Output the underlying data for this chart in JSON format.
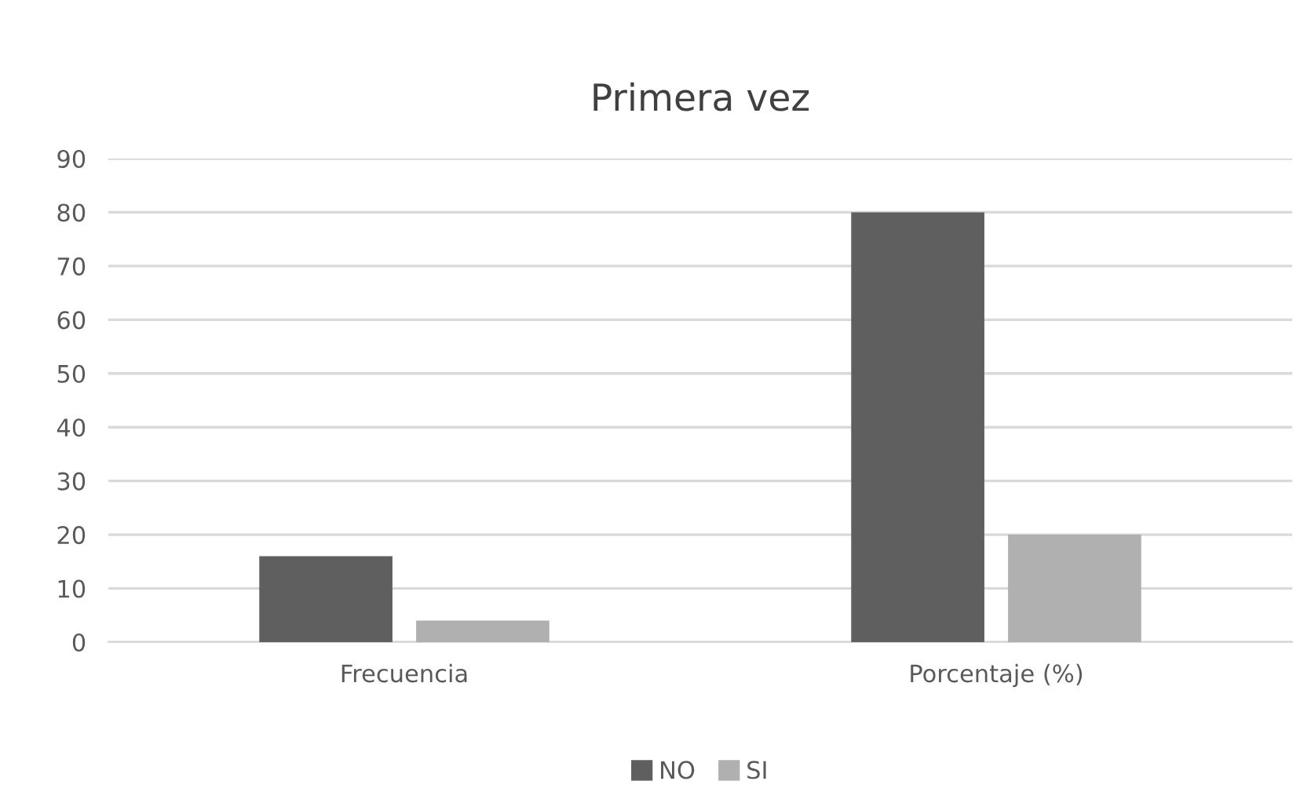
{
  "chart_data": {
    "type": "bar",
    "title": "Primera vez",
    "categories": [
      "Frecuencia",
      "Porcentaje (%)"
    ],
    "series": [
      {
        "name": "NO",
        "color": "#5f5f5f",
        "values": [
          16,
          80
        ]
      },
      {
        "name": "SI",
        "color": "#b0b0b0",
        "values": [
          4,
          20
        ]
      }
    ],
    "ylim": [
      0,
      90
    ],
    "yticks": [
      0,
      10,
      20,
      30,
      40,
      50,
      60,
      70,
      80,
      90
    ],
    "grid": "y",
    "legend": "bottom"
  }
}
